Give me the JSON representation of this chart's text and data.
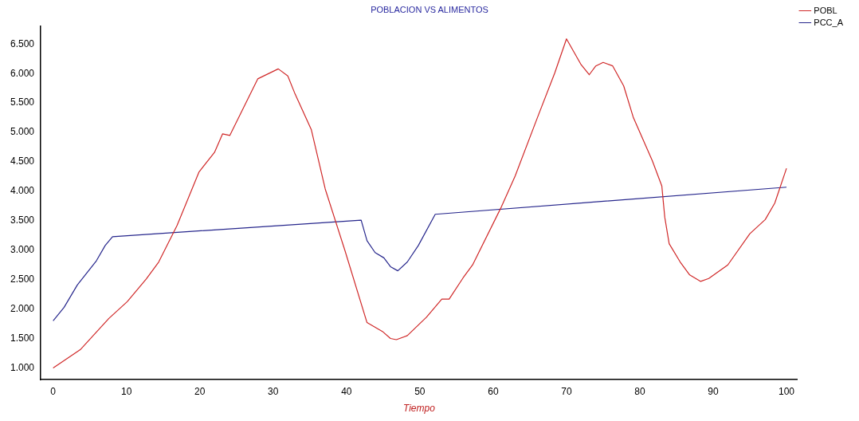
{
  "chart_data": {
    "type": "line",
    "title": "POBLACION VS ALIMENTOS",
    "xlabel": "Tiempo",
    "xlim": [
      -1.7,
      101.5
    ],
    "ylim": [
      800,
      6800
    ],
    "xticks": [
      0,
      10,
      20,
      30,
      40,
      50,
      60,
      70,
      80,
      90,
      100
    ],
    "yticks": [
      {
        "value": 1000,
        "label": "1.000"
      },
      {
        "value": 1500,
        "label": "1.500"
      },
      {
        "value": 2000,
        "label": "2.000"
      },
      {
        "value": 2500,
        "label": "2.500"
      },
      {
        "value": 3000,
        "label": "3.000"
      },
      {
        "value": 3500,
        "label": "3.500"
      },
      {
        "value": 4000,
        "label": "4.000"
      },
      {
        "value": 4500,
        "label": "4.500"
      },
      {
        "value": 5000,
        "label": "5.000"
      },
      {
        "value": 5500,
        "label": "5.500"
      },
      {
        "value": 6000,
        "label": "6.000"
      },
      {
        "value": 6500,
        "label": "6.500"
      }
    ],
    "grid": false,
    "legend": "top right",
    "marker": "none",
    "line_style": "solid",
    "series": [
      {
        "name": "POBL",
        "color": "#d02828",
        "x": [
          0,
          3.7,
          7.6,
          10.1,
          12.7,
          14.4,
          16.9,
          19.9,
          22,
          23.1,
          24.1,
          27.9,
          30.7,
          32,
          33,
          35.2,
          37.1,
          39.8,
          42.8,
          44.9,
          46,
          46.8,
          48.3,
          50.9,
          53,
          54,
          55.9,
          57.2,
          61.1,
          63,
          66,
          68.4,
          70,
          72,
          73.1,
          74,
          75,
          76.3,
          77.8,
          79.1,
          81.7,
          83,
          83.4,
          84,
          85.5,
          86.8,
          88.3,
          89.4,
          92,
          95,
          97.1,
          98.4,
          100
        ],
        "values": [
          1000,
          1310,
          1840,
          2125,
          2510,
          2800,
          3420,
          4330,
          4660,
          4975,
          4950,
          5910,
          6080,
          5960,
          5650,
          5050,
          4040,
          2990,
          1770,
          1620,
          1500,
          1480,
          1550,
          1860,
          2170,
          2170,
          2530,
          2750,
          3730,
          4260,
          5240,
          6010,
          6590,
          6150,
          5980,
          6130,
          6190,
          6130,
          5790,
          5260,
          4520,
          4090,
          3560,
          3110,
          2800,
          2580,
          2470,
          2520,
          2750,
          3280,
          3520,
          3800,
          4390
        ]
      },
      {
        "name": "PCC_A",
        "color": "#26268c",
        "x": [
          0,
          1.5,
          3.3,
          5.9,
          7.1,
          8.1,
          42,
          42.8,
          43.9,
          45.1,
          46,
          47,
          48.3,
          49.8,
          52.1,
          100
        ],
        "values": [
          1800,
          2030,
          2410,
          2820,
          3080,
          3230,
          3510,
          3160,
          2960,
          2870,
          2720,
          2650,
          2800,
          3080,
          3610,
          4070
        ]
      }
    ]
  }
}
